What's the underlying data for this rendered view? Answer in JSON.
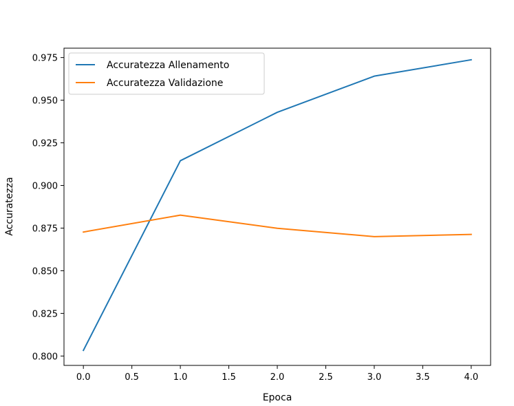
{
  "chart_data": {
    "type": "line",
    "title": "",
    "xlabel": "Epoca",
    "ylabel": "Accuratezza",
    "x": [
      0,
      1,
      2,
      3,
      4
    ],
    "xlim": [
      -0.2,
      4.2
    ],
    "ylim": [
      0.7945,
      0.9805
    ],
    "xticks": [
      0.0,
      0.5,
      1.0,
      1.5,
      2.0,
      2.5,
      3.0,
      3.5,
      4.0
    ],
    "xtick_labels": [
      "0.0",
      "0.5",
      "1.0",
      "1.5",
      "2.0",
      "2.5",
      "3.0",
      "3.5",
      "4.0"
    ],
    "yticks": [
      0.8,
      0.825,
      0.85,
      0.875,
      0.9,
      0.925,
      0.95,
      0.975
    ],
    "ytick_labels": [
      "0.800",
      "0.825",
      "0.850",
      "0.875",
      "0.900",
      "0.925",
      "0.950",
      "0.975"
    ],
    "grid": false,
    "legend_position": "top-left",
    "series": [
      {
        "name": "Accuratezza Allenamento",
        "color": "#1f77b4",
        "values": [
          0.8033,
          0.9145,
          0.9429,
          0.9641,
          0.9737
        ]
      },
      {
        "name": "Accuratezza Validazione",
        "color": "#ff7f0e",
        "values": [
          0.8727,
          0.8826,
          0.8749,
          0.87,
          0.8713
        ]
      }
    ]
  }
}
